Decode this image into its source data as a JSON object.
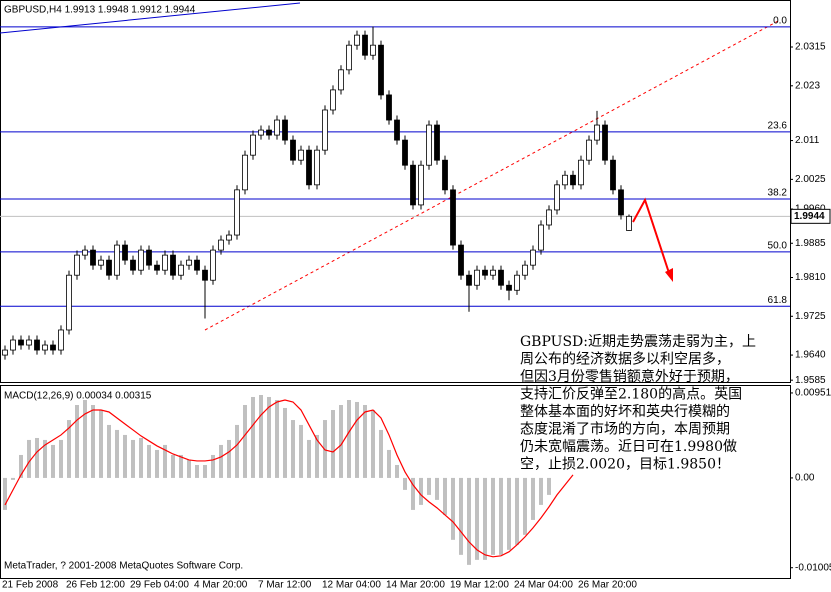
{
  "chart_data": [
    {
      "type": "candlestick",
      "title": "GBPUSD,H4  1.9913 1.9948 1.9912 1.9944",
      "up_color": "#ffffff",
      "down_color": "#000000",
      "outline_color": "#000000",
      "ylim": [
        1.9581,
        2.0418
      ],
      "yticks": [
        2.0315,
        2.023,
        2.011,
        2.0025,
        {
          "value": 1.996,
          "label": "1.9960"
        },
        1.9885,
        {
          "value": 1.981,
          "label": "1.9810"
        },
        1.9725,
        {
          "value": 1.964,
          "label": "1.9640"
        },
        1.9585
      ],
      "last_price": 1.9944,
      "level_color": "#0000cd",
      "levels": [
        {
          "value": 2.0359,
          "label": "0.0"
        },
        {
          "value": 2.0129,
          "label": "23.6"
        },
        {
          "value": 1.9982,
          "label": "38.2"
        },
        {
          "value": 1.9866,
          "label": "50.0"
        },
        {
          "value": 1.9747,
          "label": "61.8"
        }
      ],
      "categories": [
        "21 Feb 2008",
        null,
        null,
        null,
        null,
        null,
        null,
        null,
        "26 Feb 12:00",
        null,
        null,
        null,
        null,
        null,
        null,
        null,
        "29 Feb 04:00",
        null,
        null,
        null,
        null,
        null,
        null,
        null,
        "4 Mar 20:00",
        null,
        null,
        null,
        null,
        null,
        null,
        null,
        "7 Mar 12:00",
        null,
        null,
        null,
        null,
        null,
        null,
        null,
        "12 Mar 04:00",
        null,
        null,
        null,
        null,
        null,
        null,
        null,
        "14 Mar 20:00",
        null,
        null,
        null,
        null,
        null,
        null,
        null,
        "19 Mar 12:00",
        null,
        null,
        null,
        null,
        null,
        null,
        null,
        "24 Mar 04:00",
        null,
        null,
        null,
        null,
        null,
        null,
        null,
        "26 Mar 20:00",
        null,
        null,
        null,
        null,
        null,
        null
      ],
      "open": [
        1.964,
        1.9651,
        1.9673,
        1.9662,
        1.9673,
        1.9651,
        1.9662,
        1.9651,
        1.9695,
        1.9815,
        1.9859,
        1.987,
        1.9837,
        1.9848,
        1.9815,
        1.9881,
        1.9848,
        1.9826,
        1.987,
        1.9837,
        1.9826,
        1.9859,
        1.9815,
        1.9837,
        1.9848,
        1.9826,
        1.9804,
        1.987,
        1.9892,
        1.9903,
        2.0002,
        2.0078,
        2.0122,
        2.0133,
        2.0122,
        2.0155,
        2.0111,
        2.0067,
        2.0089,
        2.0013,
        2.0089,
        2.0177,
        2.0221,
        2.0265,
        2.0319,
        2.0341,
        2.0297,
        2.0319,
        2.021,
        2.0155,
        2.0111,
        2.0056,
        1.9969,
        2.0056,
        2.0144,
        2.0067,
        2.0002,
        1.9881,
        1.9815,
        1.9793,
        1.9826,
        1.9815,
        1.9826,
        1.9793,
        1.9782,
        1.9815,
        1.9837,
        1.987,
        1.9925,
        1.9958,
        2.0013,
        2.0034,
        2.0013,
        2.0067,
        2.0111,
        2.0144,
        2.0067,
        2.0002,
        1.9913
      ],
      "high": [
        1.9661,
        1.9683,
        1.9683,
        1.9683,
        1.9683,
        1.9672,
        1.9672,
        1.9705,
        1.9825,
        1.9869,
        1.988,
        1.988,
        1.9858,
        1.9858,
        1.9891,
        1.9891,
        1.9858,
        1.988,
        1.988,
        1.9847,
        1.9869,
        1.9869,
        1.9847,
        1.9858,
        1.9858,
        1.9836,
        1.988,
        1.9902,
        1.9913,
        2.0012,
        2.0088,
        2.0132,
        2.0143,
        2.0143,
        2.0165,
        2.0165,
        2.0121,
        2.0099,
        2.0099,
        2.0099,
        2.0187,
        2.0231,
        2.0275,
        2.0329,
        2.0351,
        2.0351,
        2.036,
        2.0329,
        2.022,
        2.0165,
        2.0121,
        2.0066,
        2.0066,
        2.0154,
        2.0154,
        2.0077,
        2.0012,
        1.9891,
        1.9825,
        1.9836,
        1.9836,
        1.9836,
        1.9836,
        1.9803,
        1.9825,
        1.9847,
        1.988,
        1.9935,
        1.9968,
        2.0023,
        2.0044,
        2.0044,
        2.0077,
        2.0121,
        2.0175,
        2.0154,
        2.0077,
        2.0012,
        1.9948
      ],
      "low": [
        1.963,
        1.9641,
        1.9652,
        1.9652,
        1.9641,
        1.9641,
        1.9641,
        1.9641,
        1.9685,
        1.9805,
        1.9849,
        1.9827,
        1.9827,
        1.9805,
        1.9805,
        1.9838,
        1.9816,
        1.9816,
        1.9827,
        1.9816,
        1.9816,
        1.9805,
        1.9805,
        1.9827,
        1.9816,
        1.972,
        1.9794,
        1.986,
        1.9882,
        1.9893,
        1.9992,
        2.0068,
        2.0112,
        2.0112,
        2.0112,
        2.0101,
        2.0057,
        2.0057,
        2.0003,
        2.0003,
        2.0079,
        2.0167,
        2.0211,
        2.0255,
        2.0309,
        2.0287,
        2.0287,
        2.02,
        2.0145,
        2.0101,
        2.0046,
        1.9959,
        1.9959,
        2.0046,
        2.0057,
        1.9992,
        1.9871,
        1.9805,
        1.9735,
        1.9783,
        1.9805,
        1.9805,
        1.9783,
        1.976,
        1.9772,
        1.9805,
        1.9827,
        1.986,
        1.9915,
        1.9948,
        2.0003,
        2.0003,
        2.0003,
        2.0057,
        2.0101,
        2.0057,
        1.9992,
        1.9937,
        1.9912
      ],
      "close": [
        1.9651,
        1.9673,
        1.9662,
        1.9673,
        1.9651,
        1.9662,
        1.9651,
        1.9695,
        1.9815,
        1.9859,
        1.987,
        1.9837,
        1.9848,
        1.9815,
        1.9881,
        1.9848,
        1.9826,
        1.987,
        1.9837,
        1.9826,
        1.9859,
        1.9815,
        1.9837,
        1.9848,
        1.9826,
        1.9804,
        1.987,
        1.9892,
        1.9903,
        2.0002,
        2.0078,
        2.0122,
        2.0133,
        2.0122,
        2.0155,
        2.0111,
        2.0067,
        2.0089,
        2.0013,
        2.0089,
        2.0177,
        2.0221,
        2.0265,
        2.0319,
        2.0341,
        2.0297,
        2.0319,
        2.021,
        2.0155,
        2.0111,
        2.0056,
        1.9969,
        2.0056,
        2.0144,
        2.0067,
        2.0002,
        1.9881,
        1.9815,
        1.9793,
        1.9826,
        1.9815,
        1.9826,
        1.9793,
        1.9782,
        1.9815,
        1.9837,
        1.987,
        1.9925,
        1.9958,
        2.0013,
        2.0034,
        2.0013,
        2.0067,
        2.0111,
        2.0144,
        2.0067,
        2.0002,
        1.9947,
        1.9944
      ],
      "note_lines": [
        "GBPUSD:近期走势震荡走弱为主，上",
        "周公布的经济数据多以利空居多，",
        "但因3月份零售销额意外好于预期，",
        "支持汇价反弹至2.180的高点。英国",
        "整体基本面的好坏和英央行模糊的",
        "态度混淆了市场的方向，本周预期",
        "仍未宽幅震荡。近日可在1.9980做",
        "空，止损2.0020，目标1.9850！"
      ]
    },
    {
      "type": "macd",
      "title": "MACD(12,26,9) 0.00034 0.00315",
      "footer": "MetaTrader, ? 2001-2008 MetaQuotes Software Corp.",
      "ylim": [
        -0.0112,
        0.0104
      ],
      "yticks": [
        0.00951,
        {
          "value": 0,
          "label": "0.00"
        },
        -0.01005
      ],
      "series": [
        {
          "kind": "bar",
          "color": "#c0c0c0",
          "values": [
            -0.00358,
            -0.00022,
            0.00257,
            0.00425,
            0.00447,
            0.00425,
            0.00369,
            0.00425,
            0.00648,
            0.00816,
            0.00872,
            0.00816,
            0.0076,
            0.00593,
            0.00537,
            0.00481,
            0.00425,
            0.00447,
            0.00369,
            0.00313,
            0.00369,
            0.00257,
            0.00257,
            0.00201,
            0.00145,
            0.00145,
            0.00257,
            0.00369,
            0.00425,
            0.00593,
            0.00816,
            0.00906,
            0.00928,
            0.00906,
            0.00872,
            0.00783,
            0.00648,
            0.00593,
            0.00425,
            0.00481,
            0.00648,
            0.0076,
            0.00816,
            0.00872,
            0.0085,
            0.00816,
            0.0076,
            0.00537,
            0.00313,
            0.00145,
            -0.00134,
            -0.00358,
            -0.00302,
            -0.0019,
            -0.00246,
            -0.00414,
            -0.00693,
            -0.00861,
            -0.00973,
            -0.00917,
            -0.00917,
            -0.00861,
            -0.00861,
            -0.00805,
            -0.00749,
            -0.00637,
            -0.0047,
            -0.00302,
            -0.0019,
            null,
            null,
            null,
            null,
            null,
            null,
            null,
            null,
            null,
            null
          ]
        },
        {
          "kind": "line",
          "color": "#ff0000",
          "values": [
            -0.00302,
            -0.00134,
            0.00034,
            0.00179,
            0.00291,
            0.00369,
            0.00425,
            0.00481,
            0.00559,
            0.00648,
            0.00716,
            0.0076,
            0.0076,
            0.00738,
            0.00671,
            0.00604,
            0.00537,
            0.0047,
            0.00414,
            0.00358,
            0.00313,
            0.00268,
            0.00235,
            0.00201,
            0.0019,
            0.0019,
            0.00201,
            0.00235,
            0.00291,
            0.00369,
            0.00481,
            0.00593,
            0.00704,
            0.00794,
            0.0085,
            0.00872,
            0.0085,
            0.0076,
            0.00593,
            0.00425,
            0.00313,
            0.00291,
            0.00369,
            0.00514,
            0.00648,
            0.00738,
            0.0076,
            0.00671,
            0.00481,
            0.00257,
            0.00067,
            -0.00078,
            -0.0019,
            -0.00268,
            -0.00335,
            -0.00414,
            -0.00492,
            -0.00604,
            -0.00716,
            -0.00805,
            -0.00861,
            -0.00883,
            -0.00872,
            -0.00827,
            -0.00749,
            -0.0066,
            -0.00559,
            -0.00447,
            -0.00324,
            -0.0019,
            -0.00078,
            0.00034,
            null,
            null,
            null,
            null,
            null,
            null,
            null
          ]
        }
      ]
    }
  ]
}
